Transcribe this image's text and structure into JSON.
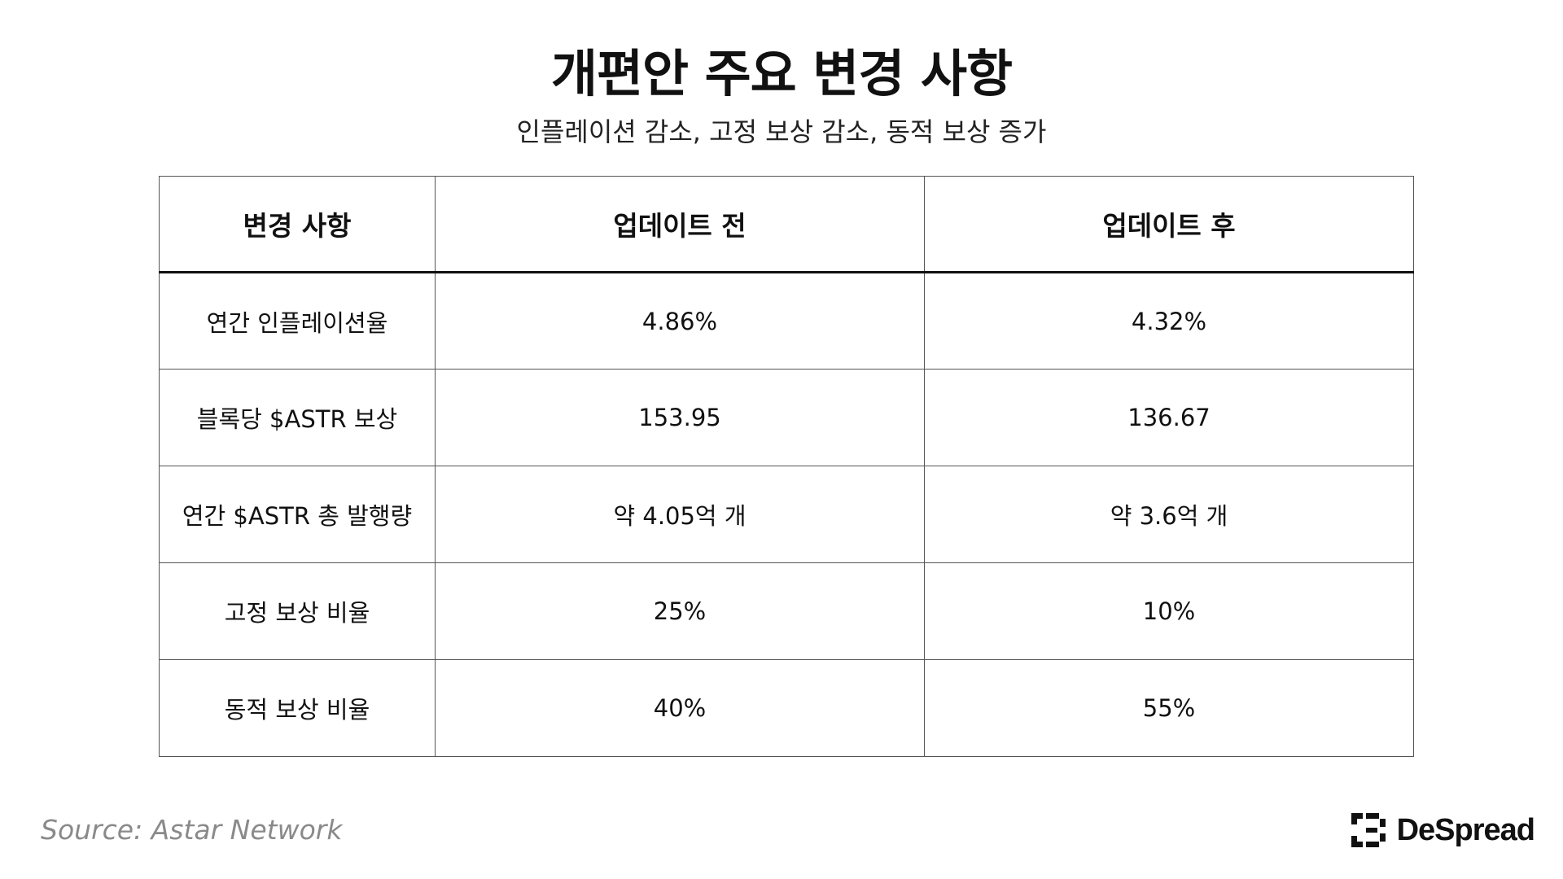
{
  "title": "개편안 주요 변경 사항",
  "subtitle": "인플레이션 감소, 고정 보상 감소, 동적 보상 증가",
  "chart_data": {
    "type": "table",
    "columns": [
      "변경 사항",
      "업데이트 전",
      "업데이트 후"
    ],
    "rows": [
      [
        "연간 인플레이션율",
        "4.86%",
        "4.32%"
      ],
      [
        "블록당 $ASTR 보상",
        "153.95",
        "136.67"
      ],
      [
        "연간 $ASTR 총 발행량",
        "약 4.05억 개",
        "약 3.6억 개"
      ],
      [
        "고정 보상 비율",
        "25%",
        "10%"
      ],
      [
        "동적 보상 비율",
        "40%",
        "55%"
      ]
    ]
  },
  "footer": {
    "source": "Source: Astar Network",
    "brand_name": "DeSpread",
    "brand_icon": "despread-logo-icon"
  },
  "colors": {
    "text": "#111111",
    "border": "#555555",
    "source_text": "#8a8a8a",
    "background": "#ffffff"
  }
}
